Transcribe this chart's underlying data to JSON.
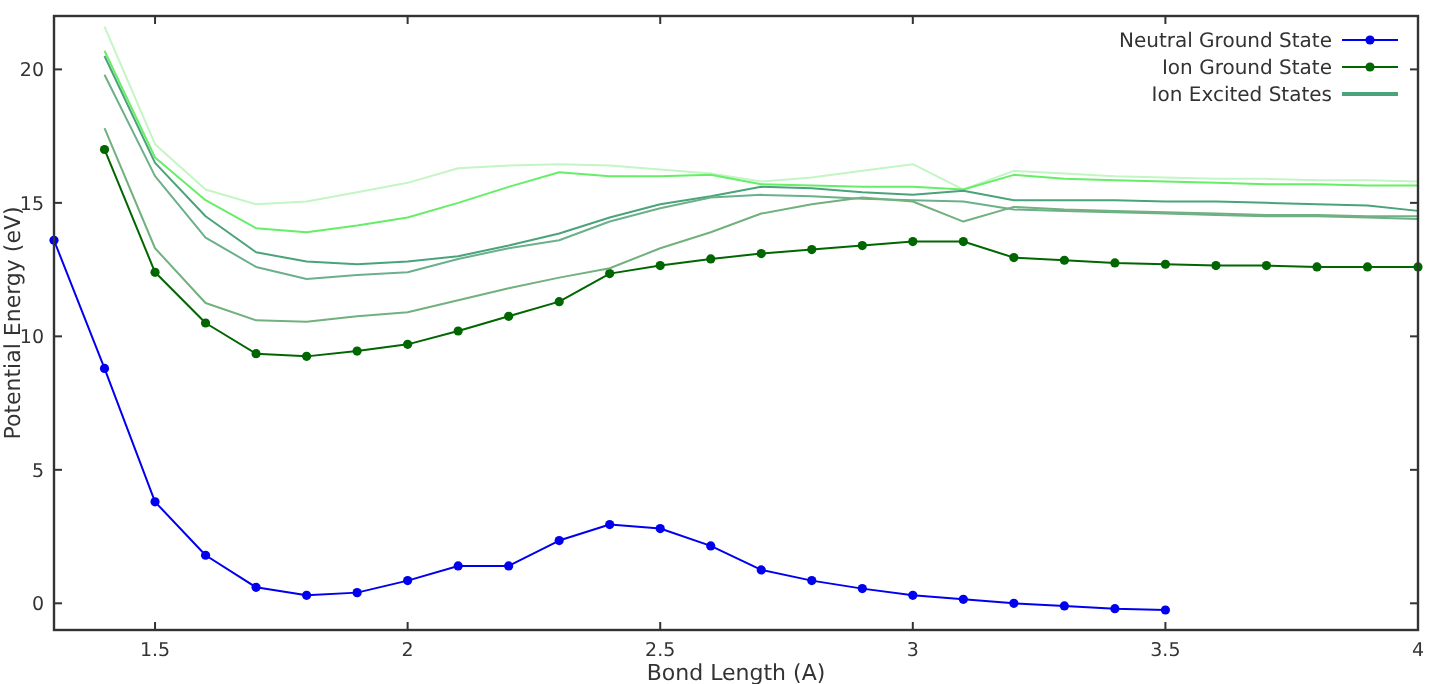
{
  "chart_data": {
    "type": "line",
    "xlabel": "Bond Length (A)",
    "ylabel": "Potential Energy (eV)",
    "xlim": [
      1.3,
      4.0
    ],
    "ylim": [
      -1,
      22
    ],
    "xticks": [
      1.5,
      2,
      2.5,
      3,
      3.5,
      4
    ],
    "yticks": [
      0,
      5,
      10,
      15,
      20
    ],
    "grid": false,
    "legend": "top right",
    "series": [
      {
        "name": "Neutral Ground State",
        "color": "#0000ee",
        "marker": "circle",
        "x": [
          1.3,
          1.4,
          1.5,
          1.6,
          1.7,
          1.8,
          1.9,
          2.0,
          2.1,
          2.2,
          2.3,
          2.4,
          2.5,
          2.6,
          2.7,
          2.8,
          2.9,
          3.0,
          3.1,
          3.2,
          3.3,
          3.4,
          3.5
        ],
        "values": [
          13.6,
          8.8,
          3.8,
          1.8,
          0.6,
          0.3,
          0.4,
          0.85,
          1.4,
          1.4,
          2.35,
          2.95,
          2.8,
          2.15,
          1.25,
          0.85,
          0.55,
          0.3,
          0.15,
          0.0,
          -0.1,
          -0.2,
          -0.25
        ]
      },
      {
        "name": "Ion Ground State",
        "color": "#006600",
        "marker": "circle",
        "x": [
          1.4,
          1.5,
          1.6,
          1.7,
          1.8,
          1.9,
          2.0,
          2.1,
          2.2,
          2.3,
          2.4,
          2.5,
          2.6,
          2.7,
          2.8,
          2.9,
          3.0,
          3.1,
          3.2,
          3.3,
          3.4,
          3.5,
          3.6,
          3.7,
          3.8,
          3.9,
          4.0
        ],
        "values": [
          17.0,
          12.4,
          10.5,
          9.35,
          9.25,
          9.45,
          9.7,
          10.2,
          10.75,
          11.3,
          12.35,
          12.65,
          12.9,
          13.1,
          13.25,
          13.4,
          13.55,
          13.55,
          12.95,
          12.85,
          12.75,
          12.7,
          12.65,
          12.65,
          12.6,
          12.6,
          12.6
        ]
      },
      {
        "color": "#c4f5c4",
        "marker": "none",
        "x": [
          1.4,
          1.5,
          1.6,
          1.7,
          1.8,
          1.9,
          2.0,
          2.1,
          2.2,
          2.3,
          2.4,
          2.5,
          2.6,
          2.7,
          2.8,
          2.9,
          3.0,
          3.1,
          3.2,
          3.3,
          3.4,
          3.5,
          3.6,
          3.7,
          3.8,
          3.9,
          4.0
        ],
        "values": [
          21.6,
          17.2,
          15.5,
          14.95,
          15.05,
          15.4,
          15.75,
          16.3,
          16.4,
          16.45,
          16.4,
          16.25,
          16.1,
          15.8,
          15.95,
          16.2,
          16.45,
          15.5,
          16.2,
          16.1,
          16.0,
          15.95,
          15.9,
          15.9,
          15.85,
          15.85,
          15.8
        ]
      },
      {
        "color": "#66ee66",
        "marker": "none",
        "x": [
          1.4,
          1.5,
          1.6,
          1.7,
          1.8,
          1.9,
          2.0,
          2.1,
          2.2,
          2.3,
          2.4,
          2.5,
          2.6,
          2.7,
          2.8,
          2.9,
          3.0,
          3.1,
          3.2,
          3.3,
          3.4,
          3.5,
          3.6,
          3.7,
          3.8,
          3.9,
          4.0
        ],
        "values": [
          20.7,
          16.7,
          15.1,
          14.05,
          13.9,
          14.15,
          14.45,
          15.0,
          15.6,
          16.15,
          16.0,
          16.0,
          16.05,
          15.7,
          15.65,
          15.6,
          15.6,
          15.5,
          16.05,
          15.9,
          15.85,
          15.8,
          15.75,
          15.7,
          15.7,
          15.65,
          15.65
        ]
      },
      {
        "name": "Ion Excited States",
        "color": "#4aa37a",
        "marker": "none",
        "x": [
          1.4,
          1.5,
          1.6,
          1.7,
          1.8,
          1.9,
          2.0,
          2.1,
          2.2,
          2.3,
          2.4,
          2.5,
          2.6,
          2.7,
          2.8,
          2.9,
          3.0,
          3.1,
          3.2,
          3.3,
          3.4,
          3.5,
          3.6,
          3.7,
          3.8,
          3.9,
          4.0
        ],
        "values": [
          20.5,
          16.5,
          14.5,
          13.15,
          12.8,
          12.7,
          12.8,
          13.0,
          13.4,
          13.85,
          14.45,
          14.95,
          15.25,
          15.6,
          15.55,
          15.4,
          15.3,
          15.45,
          15.1,
          15.1,
          15.1,
          15.05,
          15.05,
          15.0,
          14.95,
          14.9,
          14.7
        ]
      },
      {
        "color": "#6bb08a",
        "marker": "none",
        "x": [
          1.4,
          1.5,
          1.6,
          1.7,
          1.8,
          1.9,
          2.0,
          2.1,
          2.2,
          2.3,
          2.4,
          2.5,
          2.6,
          2.7,
          2.8,
          2.9,
          3.0,
          3.1,
          3.2,
          3.3,
          3.4,
          3.5,
          3.6,
          3.7,
          3.8,
          3.9,
          4.0
        ],
        "values": [
          19.8,
          16.0,
          13.7,
          12.6,
          12.15,
          12.3,
          12.4,
          12.9,
          13.3,
          13.6,
          14.3,
          14.8,
          15.2,
          15.3,
          15.25,
          15.15,
          15.1,
          15.05,
          14.75,
          14.7,
          14.65,
          14.6,
          14.55,
          14.5,
          14.5,
          14.45,
          14.4
        ]
      },
      {
        "color": "#72b07e",
        "marker": "none",
        "x": [
          1.4,
          1.5,
          1.6,
          1.7,
          1.8,
          1.9,
          2.0,
          2.1,
          2.2,
          2.3,
          2.4,
          2.5,
          2.6,
          2.7,
          2.8,
          2.9,
          3.0,
          3.1,
          3.2,
          3.3,
          3.4,
          3.5,
          3.6,
          3.7,
          3.8,
          3.9,
          4.0
        ],
        "values": [
          17.8,
          13.3,
          11.25,
          10.6,
          10.55,
          10.75,
          10.9,
          11.35,
          11.8,
          12.2,
          12.55,
          13.3,
          13.9,
          14.6,
          14.95,
          15.2,
          15.05,
          14.3,
          14.85,
          14.75,
          14.7,
          14.65,
          14.6,
          14.55,
          14.55,
          14.5,
          14.5
        ]
      }
    ]
  }
}
